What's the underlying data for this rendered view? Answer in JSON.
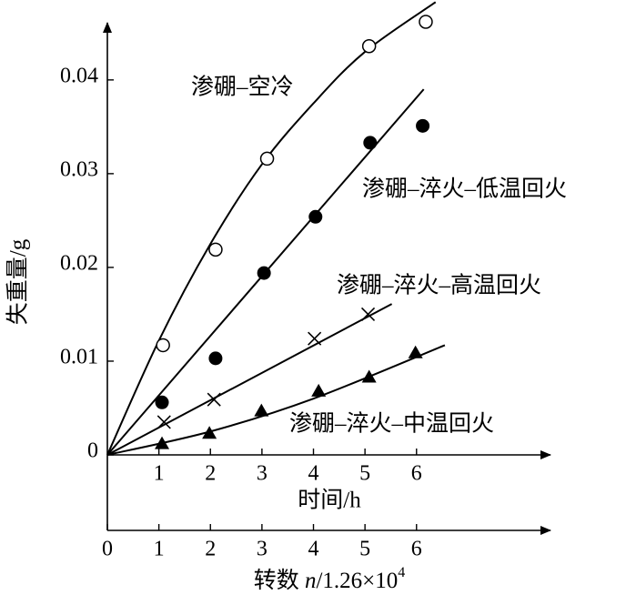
{
  "chart_data": {
    "type": "scatter",
    "y_label": "失重量/g",
    "x_label": "时间/h",
    "x2_label": [
      "转数 ",
      "n",
      "/1.26×10",
      "4"
    ],
    "xlim": [
      0,
      8.6
    ],
    "ylim": [
      0,
      0.0461
    ],
    "xticks": [
      1,
      2,
      3,
      4,
      5,
      6
    ],
    "x2ticks": [
      0,
      1,
      2,
      3,
      4,
      5,
      6
    ],
    "yticks": [
      0,
      0.01,
      0.02,
      0.03,
      0.04
    ],
    "color": "#000000",
    "series": [
      {
        "name": "渗硼–空冷",
        "marker": "open-circle",
        "x": [
          1.08,
          2.1,
          3.1,
          5.08,
          6.18
        ],
        "values": [
          0.0117,
          0.0219,
          0.0316,
          0.0436,
          0.0462
        ],
        "fit_x": [
          0,
          1,
          2,
          3,
          4,
          5,
          6.37
        ],
        "fit_values": [
          0,
          0.0122,
          0.0225,
          0.031,
          0.0375,
          0.043,
          0.0483
        ]
      },
      {
        "name": "渗硼–淬火–低温回火",
        "marker": "filled-circle",
        "x": [
          1.06,
          2.1,
          3.04,
          4.04,
          5.1,
          6.12
        ],
        "values": [
          0.0056,
          0.0103,
          0.0194,
          0.0254,
          0.0333,
          0.0351
        ],
        "fit_x": [
          0,
          6.14
        ],
        "fit_values": [
          0,
          0.039
        ]
      },
      {
        "name": "渗硼–淬火–高温回火",
        "marker": "cross",
        "x": [
          1.1,
          2.07,
          4.02,
          5.06
        ],
        "values": [
          0.0035,
          0.0059,
          0.0124,
          0.015
        ],
        "fit_x": [
          0,
          5.52
        ],
        "fit_values": [
          0,
          0.0161
        ]
      },
      {
        "name": "渗硼–淬火–中温回火",
        "marker": "triangle",
        "x": [
          1.06,
          1.98,
          2.99,
          4.1,
          5.08,
          5.98
        ],
        "values": [
          0.0012,
          0.0023,
          0.0047,
          0.0068,
          0.0083,
          0.0109
        ],
        "fit_x": [
          0,
          2,
          4,
          6.55
        ],
        "fit_values": [
          0,
          0.0025,
          0.006,
          0.0117
        ]
      }
    ]
  }
}
